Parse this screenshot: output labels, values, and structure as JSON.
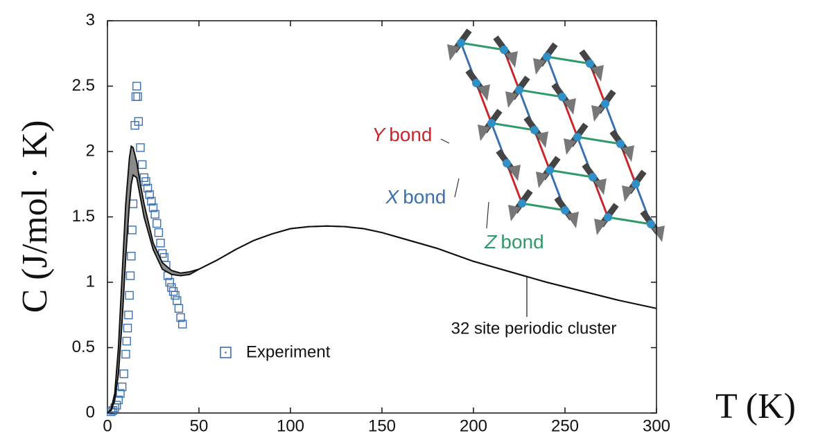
{
  "chart_data": {
    "type": "line",
    "xlabel": "T (K)",
    "ylabel": "C (J/mol · K)",
    "xlim": [
      0,
      300
    ],
    "ylim": [
      0,
      3
    ],
    "xticks": [
      0,
      50,
      100,
      150,
      200,
      250,
      300
    ],
    "yticks": [
      0,
      0.5,
      1,
      1.5,
      2,
      2.5,
      3
    ],
    "series": [
      {
        "name": "Experiment",
        "kind": "scatter",
        "color": "#3a6fb0",
        "x": [
          2,
          3,
          4,
          5,
          6,
          7,
          8,
          9,
          10,
          10.5,
          11,
          11.5,
          12,
          12.5,
          13,
          13.5,
          14,
          14.5,
          15,
          15.5,
          16,
          16.5,
          17,
          18,
          19,
          20,
          21,
          22,
          23,
          24,
          25,
          26,
          27,
          28,
          29,
          30,
          31,
          32,
          33,
          34,
          35,
          36,
          37,
          38,
          39,
          40,
          41
        ],
        "values": [
          0.01,
          0.02,
          0.04,
          0.06,
          0.1,
          0.15,
          0.2,
          0.3,
          0.45,
          0.55,
          0.65,
          0.75,
          0.9,
          1.05,
          1.2,
          1.4,
          1.6,
          1.85,
          2.2,
          2.42,
          2.5,
          2.42,
          2.23,
          2.03,
          1.9,
          1.8,
          1.77,
          1.72,
          1.67,
          1.62,
          1.57,
          1.52,
          1.45,
          1.38,
          1.3,
          1.22,
          1.19,
          1.13,
          1.05,
          1.0,
          0.96,
          0.93,
          0.9,
          0.86,
          0.8,
          0.73,
          0.68
        ]
      },
      {
        "name": "32 site periodic cluster",
        "kind": "band",
        "color": "#111111",
        "fill": "#8a8a8a",
        "x": [
          0,
          2,
          4,
          6,
          8,
          10,
          12,
          13,
          14,
          16,
          18,
          20,
          25,
          30,
          35,
          40,
          45,
          50,
          60,
          70,
          80,
          90,
          100,
          110,
          120,
          130,
          140,
          150,
          160,
          180,
          200,
          220,
          240,
          260,
          280,
          300
        ],
        "values": [
          0,
          0.03,
          0.15,
          0.5,
          1.05,
          1.6,
          1.95,
          2.04,
          2.03,
          1.92,
          1.75,
          1.6,
          1.3,
          1.15,
          1.09,
          1.07,
          1.08,
          1.1,
          1.17,
          1.25,
          1.32,
          1.37,
          1.41,
          1.425,
          1.43,
          1.425,
          1.41,
          1.38,
          1.34,
          1.26,
          1.16,
          1.08,
          1.0,
          0.93,
          0.86,
          0.8
        ],
        "lower": [
          0,
          0.02,
          0.1,
          0.3,
          0.7,
          1.2,
          1.6,
          1.75,
          1.82,
          1.8,
          1.65,
          1.5,
          1.25,
          1.1,
          1.06,
          1.05,
          1.06,
          1.1,
          1.17,
          1.25,
          1.32,
          1.37,
          1.41,
          1.425,
          1.43,
          1.425,
          1.41,
          1.38,
          1.34,
          1.26,
          1.16,
          1.08,
          1.0,
          0.93,
          0.86,
          0.8
        ]
      }
    ],
    "inset_labels": [
      {
        "axis": "Y",
        "word": "bond",
        "color": "#c8262c"
      },
      {
        "axis": "X",
        "word": "bond",
        "color": "#3a6fb0"
      },
      {
        "axis": "Z",
        "word": "bond",
        "color": "#2e9a6a"
      }
    ]
  }
}
